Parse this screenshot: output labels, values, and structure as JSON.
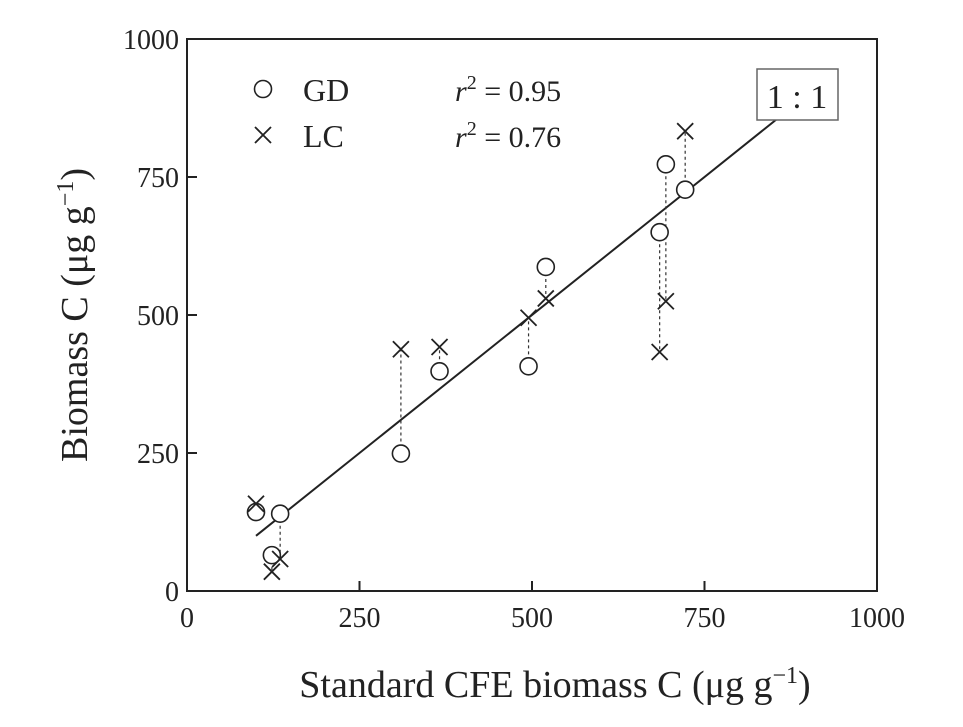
{
  "chart_data": {
    "type": "scatter",
    "title": "",
    "xlabel": {
      "main": "Standard CFE biomass C (μg g",
      "sup": "−1",
      "close": ")"
    },
    "ylabel": {
      "main": "Biomass C (μg g",
      "sup": "−1",
      "close": ")"
    },
    "xlim": [
      0,
      1000
    ],
    "ylim": [
      0,
      1000
    ],
    "xticks": [
      0,
      250,
      500,
      750,
      1000
    ],
    "yticks": [
      0,
      250,
      500,
      750,
      1000
    ],
    "grid": false,
    "legend_position": "top-left",
    "series": [
      {
        "name": "GD",
        "marker": "circle",
        "r2": "0.95",
        "points": [
          {
            "x": 100,
            "y": 143
          },
          {
            "x": 123,
            "y": 65
          },
          {
            "x": 135,
            "y": 140
          },
          {
            "x": 310,
            "y": 249
          },
          {
            "x": 366,
            "y": 398
          },
          {
            "x": 495,
            "y": 407
          },
          {
            "x": 520,
            "y": 587
          },
          {
            "x": 685,
            "y": 650
          },
          {
            "x": 694,
            "y": 773
          },
          {
            "x": 722,
            "y": 727
          }
        ]
      },
      {
        "name": "LC",
        "marker": "x",
        "r2": "0.76",
        "points": [
          {
            "x": 100,
            "y": 158
          },
          {
            "x": 123,
            "y": 35
          },
          {
            "x": 135,
            "y": 58
          },
          {
            "x": 310,
            "y": 438
          },
          {
            "x": 366,
            "y": 442
          },
          {
            "x": 495,
            "y": 495
          },
          {
            "x": 520,
            "y": 530
          },
          {
            "x": 685,
            "y": 433
          },
          {
            "x": 694,
            "y": 525
          },
          {
            "x": 722,
            "y": 833
          }
        ]
      }
    ],
    "reference_line": {
      "label": "1 : 1",
      "from": [
        100,
        100
      ],
      "to": [
        870,
        870
      ]
    },
    "r2_prefix": "r",
    "r2_sup": "2",
    "r2_eq": " = "
  }
}
